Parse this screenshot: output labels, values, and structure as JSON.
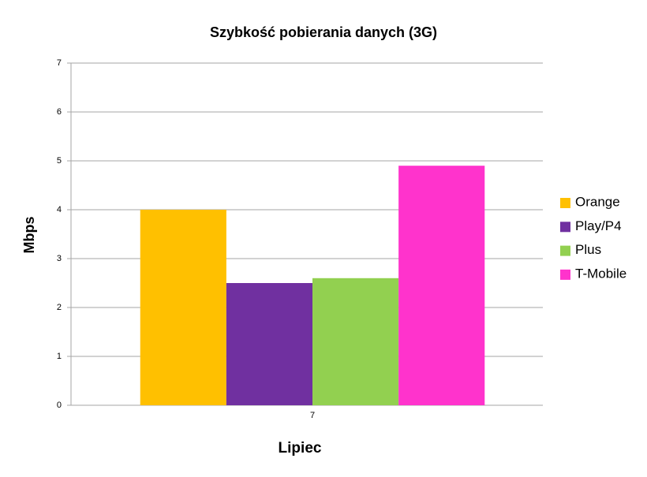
{
  "chart_data": {
    "type": "bar",
    "title": "Szybkość pobierania danych (3G)",
    "x_label": "Lipiec",
    "y_label": "Mbps",
    "categories": [
      "7"
    ],
    "series": [
      {
        "name": "Orange",
        "color": "#ffc000",
        "values": [
          4.0
        ]
      },
      {
        "name": "Play/P4",
        "color": "#7030a0",
        "values": [
          2.5
        ]
      },
      {
        "name": "Plus",
        "color": "#92d050",
        "values": [
          2.6
        ]
      },
      {
        "name": "T-Mobile",
        "color": "#ff33cc",
        "values": [
          4.9
        ]
      }
    ],
    "ylim": [
      0,
      7
    ],
    "yticks": [
      0,
      1,
      2,
      3,
      4,
      5,
      6,
      7
    ],
    "grid": true,
    "legend": "right"
  }
}
